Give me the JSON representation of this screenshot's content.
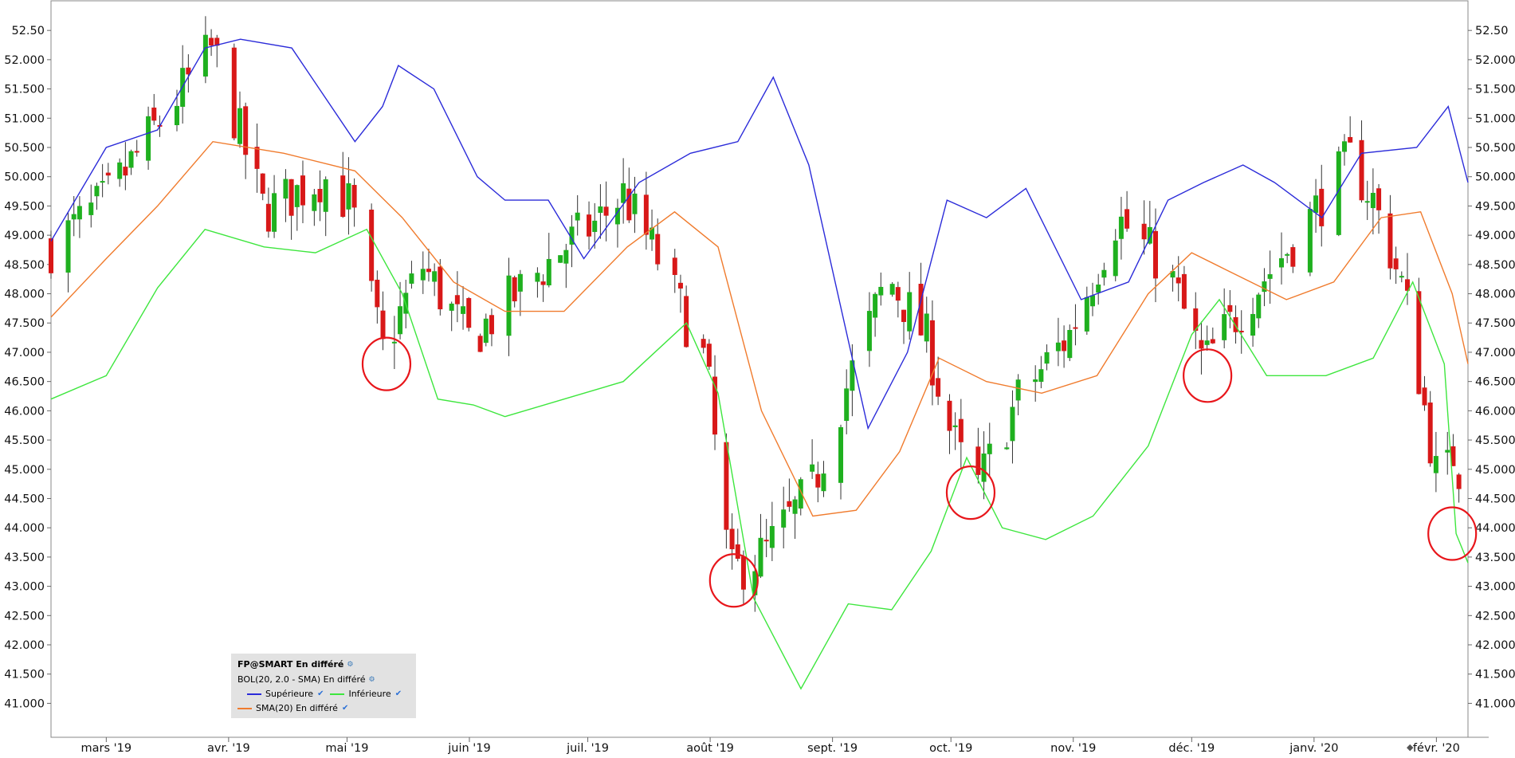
{
  "chart_data": {
    "type": "candlestick",
    "y_ticks": [
      "52.50",
      "52.000",
      "51.500",
      "51.000",
      "50.500",
      "50.000",
      "49.500",
      "49.000",
      "48.500",
      "48.000",
      "47.500",
      "47.000",
      "46.500",
      "46.000",
      "45.500",
      "45.000",
      "44.500",
      "44.000",
      "43.500",
      "43.000",
      "42.500",
      "42.000",
      "41.500",
      "41.000"
    ],
    "y_tick_values": [
      52.5,
      52.0,
      51.5,
      51.0,
      50.5,
      50.0,
      49.5,
      49.0,
      48.5,
      48.0,
      47.5,
      47.0,
      46.5,
      46.0,
      45.5,
      45.0,
      44.5,
      44.0,
      43.5,
      43.0,
      42.5,
      42.0,
      41.5,
      41.0
    ],
    "x_ticks": [
      "mars '19",
      "avr. '19",
      "mai '19",
      "juin '19",
      "juil. '19",
      "août '19",
      "sept. '19",
      "oct. '19",
      "nov. '19",
      "déc. '19",
      "janv. '20",
      "févr. '20"
    ],
    "x_tick_dates": [
      "2019-03-01",
      "2019-04-01",
      "2019-05-01",
      "2019-06-01",
      "2019-07-01",
      "2019-08-01",
      "2019-09-01",
      "2019-10-01",
      "2019-11-01",
      "2019-12-01",
      "2020-01-01",
      "2020-02-01"
    ],
    "x_range": [
      "2019-02-15",
      "2020-02-09"
    ],
    "ylim": [
      40.42,
      53.02
    ],
    "closes": [
      [
        "2019-02-15",
        48.8
      ],
      [
        "2019-03-01",
        49.6
      ],
      [
        "2019-03-15",
        51.0
      ],
      [
        "2019-03-28",
        52.2
      ],
      [
        "2019-04-10",
        49.4
      ],
      [
        "2019-04-25",
        50.0
      ],
      [
        "2019-05-02",
        49.5
      ],
      [
        "2019-05-10",
        47.0
      ],
      [
        "2019-05-20",
        48.5
      ],
      [
        "2019-06-01",
        47.2
      ],
      [
        "2019-06-13",
        48.0
      ],
      [
        "2019-06-25",
        48.8
      ],
      [
        "2019-07-03",
        49.2
      ],
      [
        "2019-07-10",
        49.7
      ],
      [
        "2019-07-18",
        48.7
      ],
      [
        "2019-07-31",
        46.8
      ],
      [
        "2019-08-06",
        43.2
      ],
      [
        "2019-08-15",
        43.6
      ],
      [
        "2019-08-27",
        44.7
      ],
      [
        "2019-09-05",
        46.5
      ],
      [
        "2019-09-15",
        48.3
      ],
      [
        "2019-09-25",
        47.2
      ],
      [
        "2019-10-01",
        45.6
      ],
      [
        "2019-10-07",
        44.6
      ],
      [
        "2019-10-18",
        46.2
      ],
      [
        "2019-10-31",
        47.3
      ],
      [
        "2019-11-12",
        49.3
      ],
      [
        "2019-11-25",
        48.4
      ],
      [
        "2019-12-04",
        46.8
      ],
      [
        "2019-12-15",
        47.9
      ],
      [
        "2019-12-28",
        49.0
      ],
      [
        "2020-01-10",
        50.3
      ],
      [
        "2020-01-16",
        49.6
      ],
      [
        "2020-01-24",
        48.0
      ],
      [
        "2020-02-02",
        44.5
      ],
      [
        "2020-02-05",
        45.3
      ],
      [
        "2020-02-09",
        44.6
      ]
    ],
    "series": [
      {
        "name": "Supérieure",
        "color": "#2b2bd9",
        "values": [
          [
            "2019-02-15",
            48.9
          ],
          [
            "2019-03-01",
            50.5
          ],
          [
            "2019-03-14",
            50.8
          ],
          [
            "2019-03-26",
            52.2
          ],
          [
            "2019-04-04",
            52.35
          ],
          [
            "2019-04-17",
            52.2
          ],
          [
            "2019-04-24",
            51.5
          ],
          [
            "2019-05-03",
            50.6
          ],
          [
            "2019-05-10",
            51.2
          ],
          [
            "2019-05-14",
            51.9
          ],
          [
            "2019-05-23",
            51.5
          ],
          [
            "2019-06-03",
            50.0
          ],
          [
            "2019-06-10",
            49.6
          ],
          [
            "2019-06-21",
            49.6
          ],
          [
            "2019-06-30",
            48.6
          ],
          [
            "2019-07-14",
            49.9
          ],
          [
            "2019-07-27",
            50.4
          ],
          [
            "2019-08-08",
            50.6
          ],
          [
            "2019-08-17",
            51.7
          ],
          [
            "2019-08-26",
            50.2
          ],
          [
            "2019-09-10",
            45.7
          ],
          [
            "2019-09-20",
            47.0
          ],
          [
            "2019-09-30",
            49.6
          ],
          [
            "2019-10-10",
            49.3
          ],
          [
            "2019-10-20",
            49.8
          ],
          [
            "2019-11-03",
            47.9
          ],
          [
            "2019-11-15",
            48.2
          ],
          [
            "2019-11-25",
            49.6
          ],
          [
            "2019-12-04",
            49.9
          ],
          [
            "2019-12-14",
            50.2
          ],
          [
            "2019-12-22",
            49.9
          ],
          [
            "2020-01-03",
            49.3
          ],
          [
            "2020-01-13",
            50.4
          ],
          [
            "2020-01-27",
            50.5
          ],
          [
            "2020-02-04",
            51.2
          ],
          [
            "2020-02-09",
            49.9
          ]
        ]
      },
      {
        "name": "Inférieure",
        "color": "#3ee63e",
        "values": [
          [
            "2019-02-15",
            46.2
          ],
          [
            "2019-03-01",
            46.6
          ],
          [
            "2019-03-14",
            48.1
          ],
          [
            "2019-03-26",
            49.1
          ],
          [
            "2019-04-10",
            48.8
          ],
          [
            "2019-04-23",
            48.7
          ],
          [
            "2019-05-06",
            49.1
          ],
          [
            "2019-05-15",
            48.0
          ],
          [
            "2019-05-24",
            46.2
          ],
          [
            "2019-06-02",
            46.1
          ],
          [
            "2019-06-10",
            45.9
          ],
          [
            "2019-06-25",
            46.2
          ],
          [
            "2019-07-10",
            46.5
          ],
          [
            "2019-07-26",
            47.5
          ],
          [
            "2019-08-03",
            46.3
          ],
          [
            "2019-08-12",
            42.8
          ],
          [
            "2019-08-24",
            41.25
          ],
          [
            "2019-09-05",
            42.7
          ],
          [
            "2019-09-16",
            42.6
          ],
          [
            "2019-09-26",
            43.6
          ],
          [
            "2019-10-05",
            45.2
          ],
          [
            "2019-10-14",
            44.0
          ],
          [
            "2019-10-25",
            43.8
          ],
          [
            "2019-11-06",
            44.2
          ],
          [
            "2019-11-20",
            45.4
          ],
          [
            "2019-12-01",
            47.3
          ],
          [
            "2019-12-08",
            47.9
          ],
          [
            "2019-12-20",
            46.6
          ],
          [
            "2020-01-04",
            46.6
          ],
          [
            "2020-01-16",
            46.9
          ],
          [
            "2020-01-26",
            48.2
          ],
          [
            "2020-02-03",
            46.8
          ],
          [
            "2020-02-06",
            43.9
          ],
          [
            "2020-02-09",
            43.4
          ]
        ]
      },
      {
        "name": "SMA(20) En différé",
        "color": "#f07b2d",
        "values": [
          [
            "2019-02-15",
            47.6
          ],
          [
            "2019-03-01",
            48.6
          ],
          [
            "2019-03-14",
            49.5
          ],
          [
            "2019-03-28",
            50.6
          ],
          [
            "2019-04-15",
            50.4
          ],
          [
            "2019-05-03",
            50.1
          ],
          [
            "2019-05-15",
            49.3
          ],
          [
            "2019-05-28",
            48.2
          ],
          [
            "2019-06-10",
            47.7
          ],
          [
            "2019-06-25",
            47.7
          ],
          [
            "2019-07-11",
            48.8
          ],
          [
            "2019-07-23",
            49.4
          ],
          [
            "2019-08-03",
            48.8
          ],
          [
            "2019-08-14",
            46.0
          ],
          [
            "2019-08-27",
            44.2
          ],
          [
            "2019-09-07",
            44.3
          ],
          [
            "2019-09-18",
            45.3
          ],
          [
            "2019-09-28",
            46.9
          ],
          [
            "2019-10-10",
            46.5
          ],
          [
            "2019-10-24",
            46.3
          ],
          [
            "2019-11-07",
            46.6
          ],
          [
            "2019-11-20",
            48.0
          ],
          [
            "2019-12-01",
            48.7
          ],
          [
            "2019-12-10",
            48.4
          ],
          [
            "2019-12-25",
            47.9
          ],
          [
            "2020-01-06",
            48.2
          ],
          [
            "2020-01-18",
            49.3
          ],
          [
            "2020-01-28",
            49.4
          ],
          [
            "2020-02-05",
            48.0
          ],
          [
            "2020-02-09",
            46.8
          ]
        ]
      }
    ],
    "circled_points": [
      [
        "2019-05-11",
        46.8
      ],
      [
        "2019-08-07",
        43.1
      ],
      [
        "2019-10-06",
        44.6
      ],
      [
        "2019-12-05",
        46.6
      ],
      [
        "2020-02-05",
        43.9
      ]
    ],
    "grid": false,
    "legend_position": "bottom-left"
  },
  "legend": {
    "title": "FP@SMART En différé",
    "subtitle": "BOL(20, 2.0 - SMA) En différé",
    "upper_label": "Supérieure",
    "lower_label": "Inférieure",
    "sma_label": "SMA(20) En différé",
    "colors": {
      "upper": "#2b2bd9",
      "lower": "#3ee63e",
      "sma": "#f07b2d",
      "up_candle": "#1fb01f",
      "down_candle": "#d81818",
      "circle": "#e8161b"
    }
  }
}
